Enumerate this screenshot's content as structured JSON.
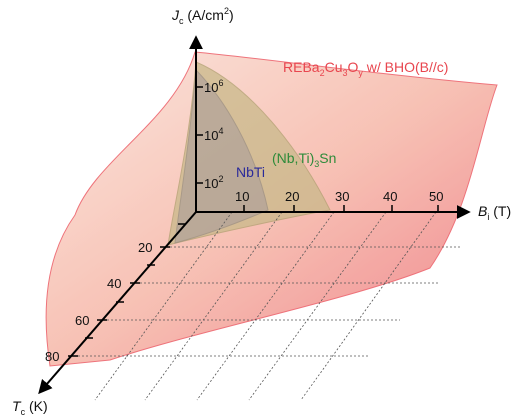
{
  "axes": {
    "jc": {
      "symbol": "J",
      "subscript": "c",
      "unit": " (A/cm",
      "sup": "2",
      "close": ")",
      "ticks": [
        {
          "base": "10",
          "exp": "6"
        },
        {
          "base": "10",
          "exp": "4"
        },
        {
          "base": "10",
          "exp": "2"
        }
      ]
    },
    "b": {
      "symbol": "B",
      "subscript": "i",
      "unit": " (T)",
      "ticks": [
        "10",
        "20",
        "30",
        "40",
        "50"
      ]
    },
    "tc": {
      "symbol": "T",
      "subscript": "c",
      "unit": " (K)",
      "ticks": [
        "20",
        "40",
        "60",
        "80"
      ]
    }
  },
  "surfaces": {
    "reba": {
      "p1": "REBa",
      "s1": "2",
      "p2": "Cu",
      "s2": "3",
      "p3": "O",
      "s3": "y",
      "p4": " w/ BHO(B//c)",
      "color": "#e8464f",
      "fill": "#f5a99a"
    },
    "nb3sn": {
      "p1": "(Nb,Ti)",
      "s1": "3",
      "p2": "Sn",
      "color": "#2e8b3a",
      "fill": "#cfc39a"
    },
    "nbti": {
      "label": "NbTi",
      "color": "#2a2a9a",
      "fill": "#b9a9a8"
    }
  }
}
